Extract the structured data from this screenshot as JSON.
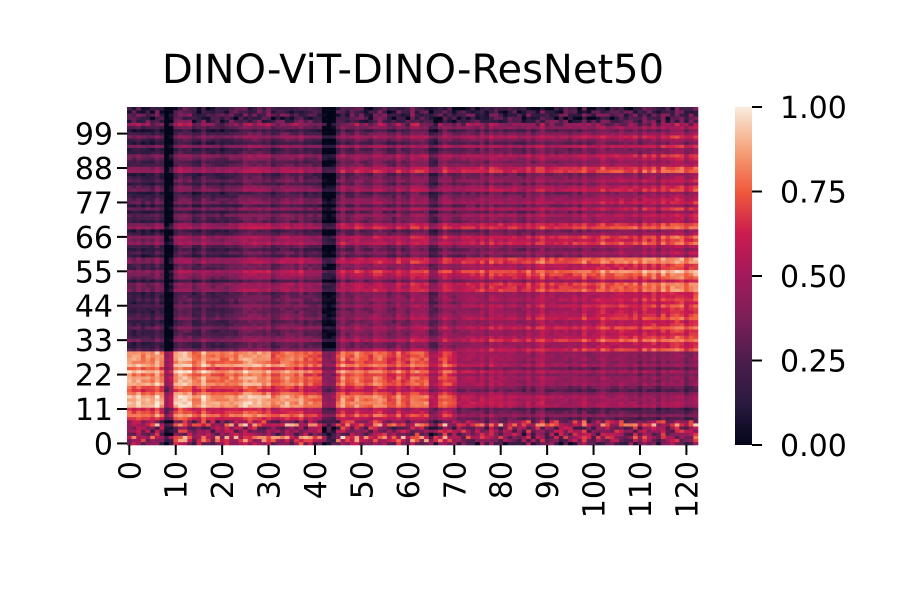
{
  "chart_data": {
    "type": "heatmap",
    "title": "DINO-ViT-DINO-ResNet50",
    "xlabel": "",
    "ylabel": "",
    "x_range": [
      0,
      123
    ],
    "y_range": [
      0,
      108
    ],
    "x_tick_labels": [
      "0",
      "10",
      "20",
      "30",
      "40",
      "50",
      "60",
      "70",
      "80",
      "90",
      "100",
      "110",
      "120"
    ],
    "y_tick_labels": [
      "0",
      "11",
      "22",
      "33",
      "44",
      "55",
      "66",
      "77",
      "88",
      "99"
    ],
    "colorbar": {
      "colormap": "rocket",
      "vmin": 0.0,
      "vmax": 1.0,
      "tick_labels": [
        "0.00",
        "0.25",
        "0.50",
        "0.75",
        "1.00"
      ]
    }
  }
}
